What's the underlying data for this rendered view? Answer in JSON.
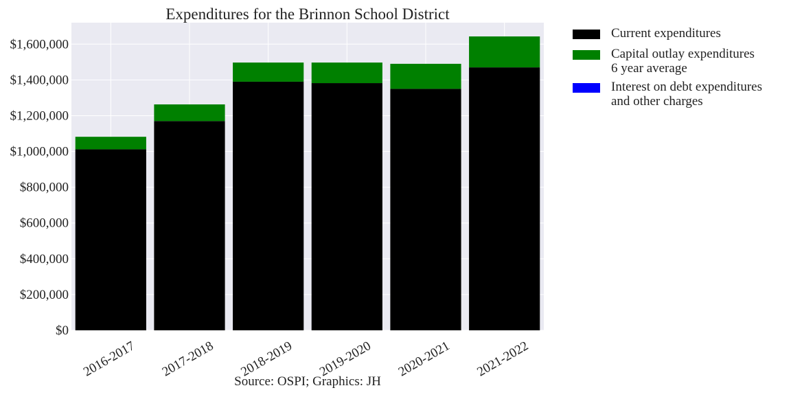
{
  "chart_data": {
    "type": "bar",
    "stacked": true,
    "title": "Expenditures for the Brinnon School District",
    "caption": "Source: OSPI; Graphics: JH",
    "xlabel": "",
    "ylabel": "",
    "categories": [
      "2016-2017",
      "2017-2018",
      "2018-2019",
      "2019-2020",
      "2020-2021",
      "2021-2022"
    ],
    "series": [
      {
        "name": "Current expenditures",
        "color": "#000000",
        "values": [
          1012000,
          1170000,
          1390000,
          1382000,
          1350000,
          1470000
        ]
      },
      {
        "name": "Capital outlay expenditures\n6 year average",
        "color": "#008000",
        "values": [
          70000,
          93000,
          107000,
          115000,
          140000,
          173000
        ]
      },
      {
        "name": "Interest on debt expenditures\nand other charges",
        "color": "#0000ff",
        "values": [
          0,
          0,
          0,
          0,
          0,
          0
        ]
      }
    ],
    "ylim": [
      0,
      1720000
    ],
    "yticks": [
      0,
      200000,
      400000,
      600000,
      800000,
      1000000,
      1200000,
      1400000,
      1600000
    ],
    "ytick_labels": [
      "$0",
      "$200,000",
      "$400,000",
      "$600,000",
      "$800,000",
      "$1,000,000",
      "$1,200,000",
      "$1,400,000",
      "$1,600,000"
    ],
    "grid": true,
    "legend_position": "outside-right",
    "background_color": "#eaeaf2",
    "grid_color": "#ffffff"
  }
}
